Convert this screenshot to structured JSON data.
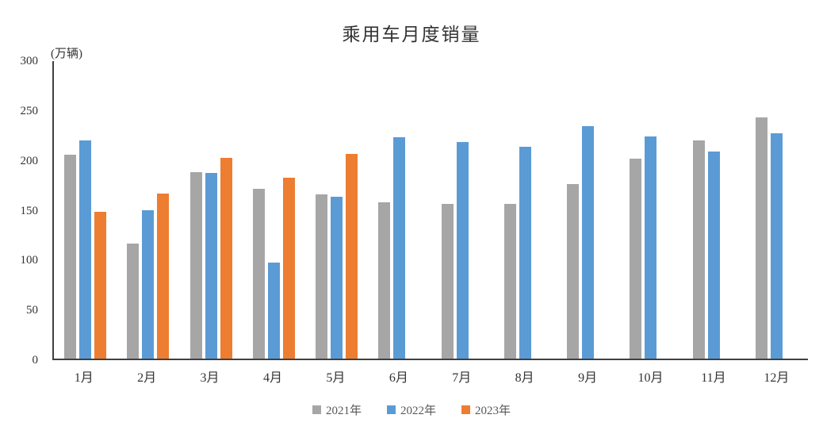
{
  "title": "乘用车月度销量",
  "chart_data": {
    "type": "bar",
    "title": "乘用车月度销量",
    "ylabel": "(万辆)",
    "xlabel": "",
    "ylim": [
      0,
      300
    ],
    "yticks": [
      0,
      50,
      100,
      150,
      200,
      250,
      300
    ],
    "grid": false,
    "legend_position": "bottom",
    "categories": [
      "1月",
      "2月",
      "3月",
      "4月",
      "5月",
      "6月",
      "7月",
      "8月",
      "9月",
      "10月",
      "11月",
      "12月"
    ],
    "series": [
      {
        "name": "2021年",
        "color": "#A6A6A6",
        "values": [
          204.5,
          115.6,
          187.4,
          170.4,
          164.6,
          156.9,
          155.1,
          155.2,
          175.1,
          200.7,
          219.2,
          242.2
        ]
      },
      {
        "name": "2022年",
        "color": "#5B9BD5",
        "values": [
          218.6,
          148.7,
          186.4,
          96.5,
          162.3,
          222.2,
          217.4,
          212.5,
          233.2,
          223.1,
          207.5,
          226.3
        ]
      },
      {
        "name": "2023年",
        "color": "#ED7D31",
        "values": [
          146.9,
          165.3,
          201.7,
          181.1,
          205.1,
          null,
          null,
          null,
          null,
          null,
          null,
          null
        ]
      }
    ]
  },
  "colors": {
    "axis": "#404040",
    "tick_text": "#333333",
    "legend_text": "#595959",
    "background": "#FFFFFF"
  }
}
